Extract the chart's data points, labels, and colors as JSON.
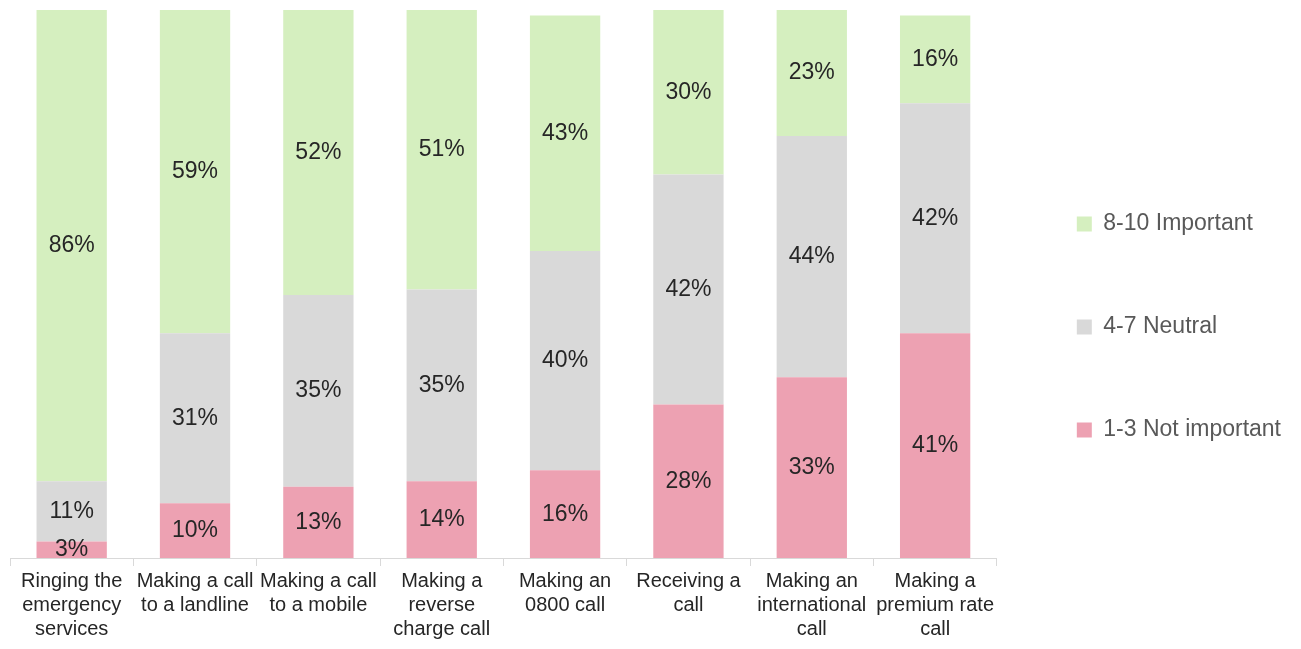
{
  "chart_data": {
    "type": "bar",
    "stacked": true,
    "legend": "right",
    "grid": false,
    "categories": [
      "Ringing the emergency services",
      "Making a call to a landline",
      "Making a call to a mobile",
      "Making a reverse charge call",
      "Making an 0800 call",
      "Receiving a call",
      "Making an international call",
      "Making a premium rate call"
    ],
    "series": [
      {
        "name": "1-3 Not important",
        "color": "#eda1b2",
        "values": [
          3,
          10,
          13,
          14,
          16,
          28,
          33,
          41
        ],
        "value_labels": [
          "3%",
          "10%",
          "13%",
          "14%",
          "16%",
          "28%",
          "33%",
          "41%"
        ]
      },
      {
        "name": "4-7 Neutral",
        "color": "#d9d9d9",
        "values": [
          11,
          31,
          35,
          35,
          40,
          42,
          44,
          42
        ],
        "value_labels": [
          "11%",
          "31%",
          "35%",
          "35%",
          "40%",
          "42%",
          "44%",
          "42%"
        ]
      },
      {
        "name": "8-10 Important",
        "color": "#d5efbf",
        "values": [
          86,
          59,
          52,
          51,
          43,
          30,
          23,
          16
        ],
        "value_labels": [
          "86%",
          "59%",
          "52%",
          "51%",
          "43%",
          "30%",
          "23%",
          "16%"
        ]
      }
    ]
  }
}
